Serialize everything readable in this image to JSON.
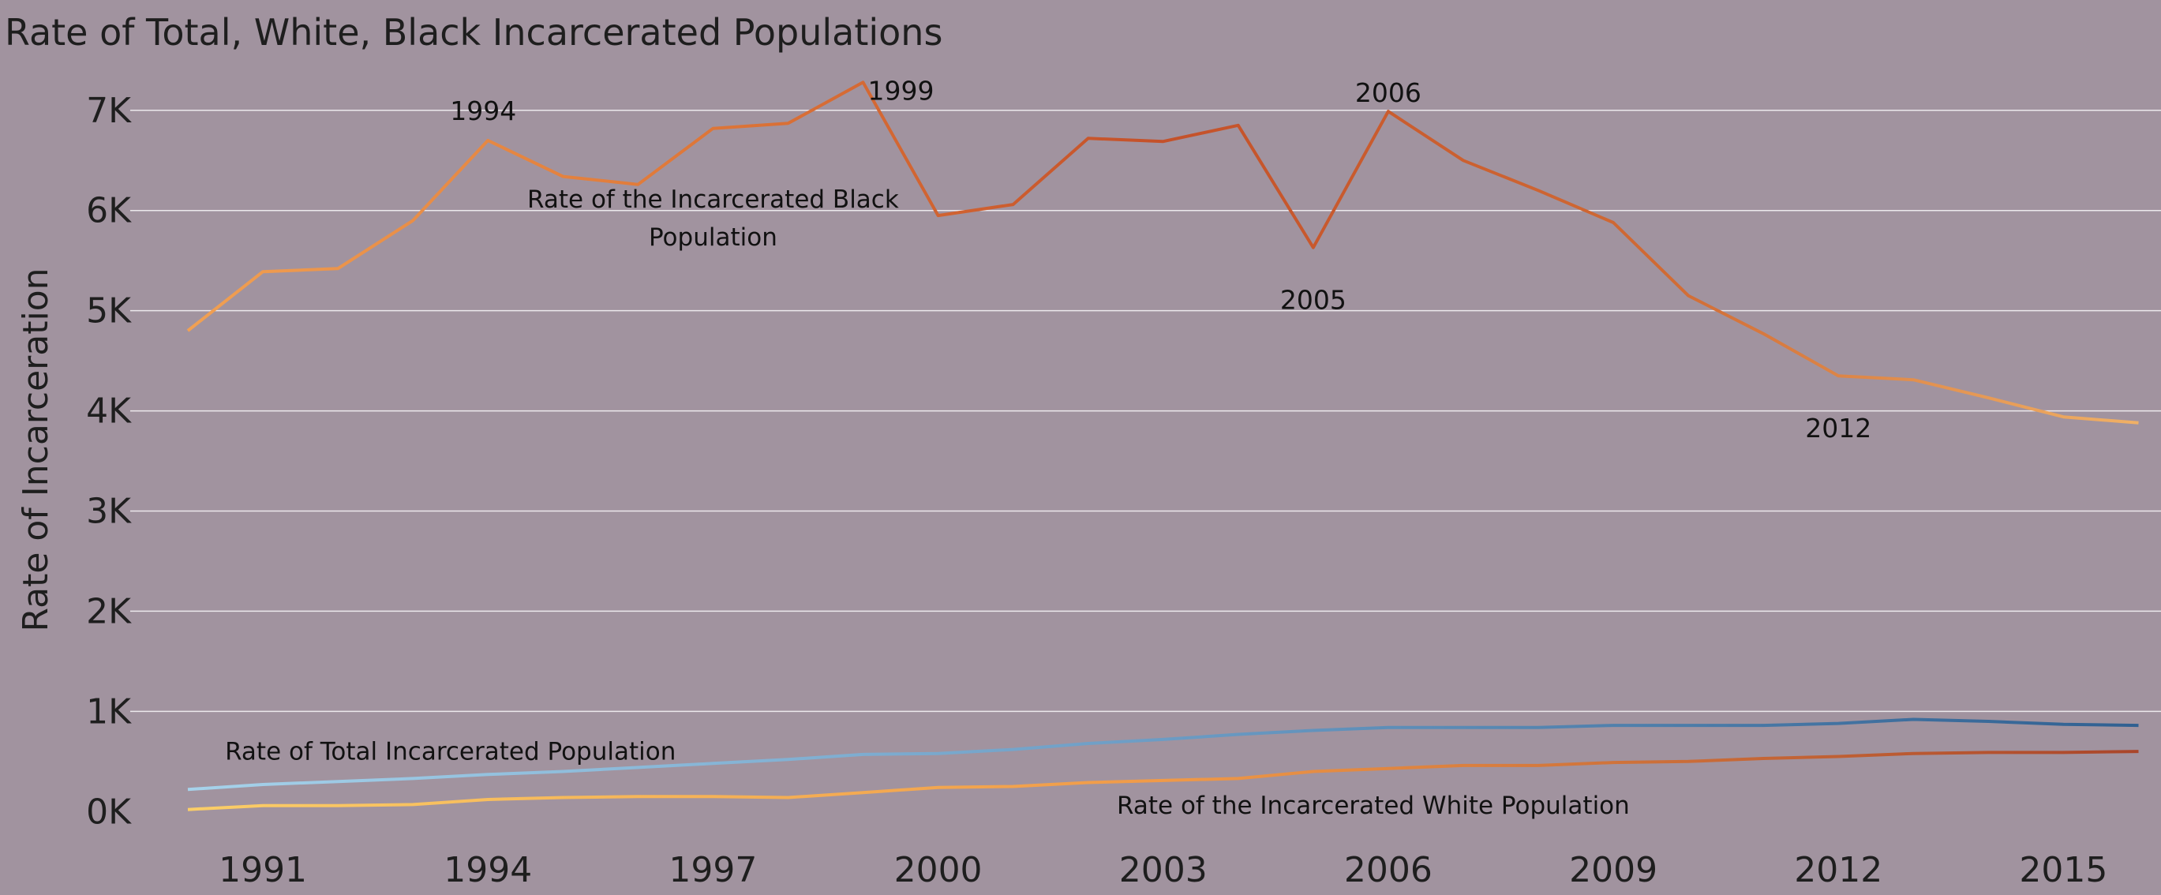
{
  "chart_data": {
    "type": "line",
    "title": "Rate of Total, White, Black Incarcerated Populations",
    "ylabel": "Rate of Incarceration",
    "xlabel": "",
    "ylim": [
      -250,
      7550
    ],
    "xlim": [
      1989.6,
      2016.3
    ],
    "y_ticks": [
      {
        "value": 0,
        "label": "0K"
      },
      {
        "value": 1000,
        "label": "1K"
      },
      {
        "value": 2000,
        "label": "2K"
      },
      {
        "value": 3000,
        "label": "3K"
      },
      {
        "value": 4000,
        "label": "4K"
      },
      {
        "value": 5000,
        "label": "5K"
      },
      {
        "value": 6000,
        "label": "6K"
      },
      {
        "value": 7000,
        "label": "7K"
      }
    ],
    "x_ticks": [
      1991,
      1994,
      1997,
      2000,
      2003,
      2006,
      2009,
      2012,
      2015
    ],
    "grid": true,
    "series": [
      {
        "name": "Rate of the Incarcerated Black Population",
        "x": [
          1990,
          1991,
          1992,
          1993,
          1994,
          1995,
          1996,
          1997,
          1998,
          1999,
          2000,
          2001,
          2002,
          2003,
          2004,
          2005,
          2006,
          2007,
          2008,
          2009,
          2010,
          2011,
          2012,
          2013,
          2014,
          2015,
          2016
        ],
        "y": [
          4800,
          5390,
          5420,
          5900,
          6700,
          6340,
          6260,
          6820,
          6870,
          7280,
          5950,
          6060,
          6720,
          6690,
          6850,
          5630,
          6990,
          6500,
          6200,
          5880,
          5150,
          4770,
          4350,
          4310,
          4130,
          3940,
          3880
        ]
      },
      {
        "name": "Rate of Total Incarcerated Population",
        "x": [
          1990,
          1991,
          1992,
          1993,
          1994,
          1995,
          1996,
          1997,
          1998,
          1999,
          2000,
          2001,
          2002,
          2003,
          2004,
          2005,
          2006,
          2007,
          2008,
          2009,
          2010,
          2011,
          2012,
          2013,
          2014,
          2015,
          2016
        ],
        "y": [
          220,
          270,
          300,
          330,
          370,
          400,
          440,
          480,
          520,
          570,
          580,
          620,
          680,
          720,
          770,
          810,
          840,
          840,
          840,
          860,
          860,
          860,
          880,
          920,
          900,
          870,
          860
        ]
      },
      {
        "name": "Rate of the Incarcerated White Population",
        "x": [
          1990,
          1991,
          1992,
          1993,
          1994,
          1995,
          1996,
          1997,
          1998,
          1999,
          2000,
          2001,
          2002,
          2003,
          2004,
          2005,
          2006,
          2007,
          2008,
          2009,
          2010,
          2011,
          2012,
          2013,
          2014,
          2015,
          2016
        ],
        "y": [
          20,
          60,
          60,
          70,
          120,
          140,
          150,
          150,
          140,
          190,
          240,
          250,
          290,
          310,
          330,
          400,
          430,
          460,
          460,
          490,
          500,
          530,
          550,
          580,
          590,
          590,
          600
        ]
      }
    ],
    "annotations": [
      {
        "text": "1994",
        "series": 0,
        "x": 1994,
        "anchor": "above-left"
      },
      {
        "text": "1999",
        "series": 0,
        "x": 1999,
        "anchor": "right"
      },
      {
        "text": "2005",
        "series": 0,
        "x": 2005,
        "anchor": "below"
      },
      {
        "text": "2006",
        "series": 0,
        "x": 2006,
        "anchor": "above"
      },
      {
        "text": "2012",
        "series": 0,
        "x": 2012,
        "anchor": "below"
      }
    ],
    "series_labels": [
      {
        "series": 0,
        "lines": [
          "Rate of the Incarcerated Black",
          "Population"
        ],
        "at_x": 1997.0,
        "at_y": 6030
      },
      {
        "series": 1,
        "lines": [
          "Rate of Total Incarcerated Population"
        ],
        "at_x": 1993.5,
        "at_y": 520
      },
      {
        "series": 2,
        "lines": [
          "Rate of the Incarcerated White Population"
        ],
        "at_x": 2005.8,
        "at_y": -20
      }
    ]
  },
  "colors": {
    "background": "#a1939f",
    "grid": "#ece8ec",
    "text": "#1e1e1e",
    "black_population_gradient": [
      "#f2a354",
      "#e07a3a",
      "#c4512a",
      "#d06a34",
      "#f2b468"
    ],
    "total_population_gradient": [
      "#a8d4ec",
      "#6c9cc4",
      "#2f5f90"
    ],
    "white_population_gradient": [
      "#fbcf68",
      "#f09a48",
      "#a8442a"
    ]
  }
}
